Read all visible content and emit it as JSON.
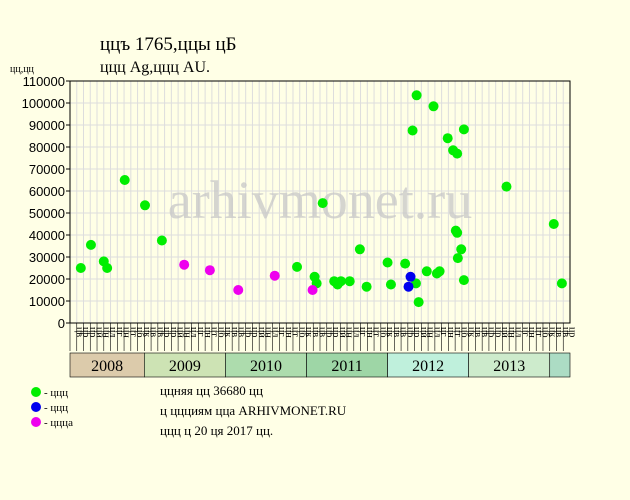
{
  "chart_data": {
    "type": "scatter",
    "title": "ццъ 1765,ццы цБ",
    "subtitle": "ццц Ag,ццц AU.",
    "y_label": "цц,цц",
    "watermark": "arhivmonet.ru",
    "ylim": [
      0,
      110000
    ],
    "yticks": [
      0,
      10000,
      20000,
      30000,
      40000,
      50000,
      60000,
      70000,
      80000,
      90000,
      100000,
      110000
    ],
    "xlim": [
      0,
      74
    ],
    "grid": true,
    "categories": [
      "цв",
      "цр",
      "цр",
      "цй",
      "цн",
      "цл",
      "цг",
      "цн",
      "цт",
      "цб",
      "цк",
      "цв",
      "цв",
      "цр",
      "цр",
      "цй",
      "цн",
      "цл",
      "цг",
      "цн",
      "цт",
      "цб",
      "цк",
      "цв",
      "цв",
      "цр",
      "цр",
      "цй",
      "цн",
      "цл",
      "цг",
      "цн",
      "цт",
      "цб",
      "цк",
      "цв",
      "цв",
      "цр",
      "цр",
      "цй",
      "цн",
      "цл",
      "цг",
      "цн",
      "цт",
      "цб",
      "цк",
      "цв",
      "цв",
      "цр",
      "цр",
      "цй",
      "цн",
      "цл",
      "цг",
      "цн",
      "цт",
      "цб",
      "цк",
      "цв",
      "цв",
      "цр",
      "цр",
      "цй",
      "цн",
      "цл",
      "цг",
      "цн",
      "цт",
      "цб",
      "цк",
      "цв",
      "цв",
      "цр"
    ],
    "years": [
      "2008",
      "2009",
      "2010",
      "2011",
      "2012",
      "2013",
      null
    ],
    "year_colors": [
      "#dccbab",
      "#cde3b4",
      "#addcad",
      "#9ed6a6",
      "#bff0dc",
      "#cdebcc",
      "#acdcc4"
    ],
    "series": [
      {
        "name": "- ццц",
        "color": "#00ee00",
        "x": [
          1.6,
          3.1,
          5.0,
          5.5,
          8.1,
          11.1,
          13.6,
          33.6,
          36.2,
          36.5,
          37.4,
          39.1,
          39.6,
          40.1,
          41.4,
          42.9,
          43.9,
          47.0,
          47.5,
          49.6,
          50.7,
          51.2,
          51.3,
          51.6,
          52.8,
          53.8,
          54.3,
          54.7,
          55.9,
          56.7,
          57.1,
          57.3,
          57.3,
          57.4,
          57.9,
          58.3,
          58.3,
          64.6,
          71.6,
          72.8
        ],
        "values": [
          25000,
          35500,
          28000,
          25000,
          65000,
          53500,
          37500,
          25500,
          21000,
          18000,
          54500,
          19000,
          17500,
          19000,
          19000,
          33500,
          16500,
          27500,
          17500,
          27000,
          87500,
          18000,
          103500,
          9500,
          23500,
          98500,
          22500,
          23500,
          84000,
          78500,
          42000,
          77000,
          41000,
          29500,
          33500,
          88000,
          19500,
          62000,
          45000,
          18000
        ]
      },
      {
        "name": "- ццц",
        "color": "#0000ee",
        "x": [
          50.4,
          50.1
        ],
        "values": [
          21000,
          16500
        ]
      },
      {
        "name": "- цццa",
        "color": "#ee00ee",
        "x": [
          16.9,
          20.7,
          24.9,
          30.3,
          35.9
        ],
        "values": [
          26500,
          24000,
          15000,
          21500,
          15000
        ]
      }
    ],
    "notes": [
      "ццняя цц 36680 цц",
      "ц ццциям цца ARHIVMONET.RU",
      "ццц ц 20 ця 2017 цц."
    ]
  }
}
